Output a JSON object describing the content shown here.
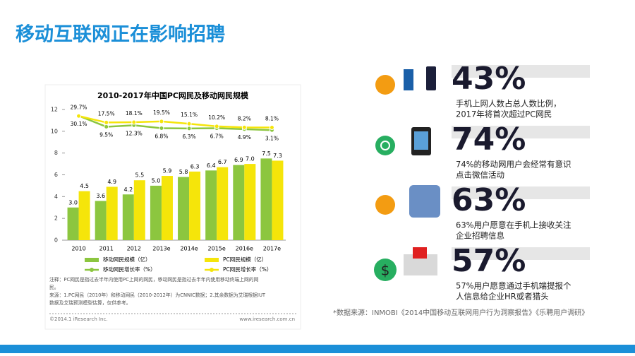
{
  "header": {
    "title": "移动互联网正在影响招聘"
  },
  "chart_data": {
    "type": "bar",
    "title": "2010-2017年中国PC网民及移动网民规模",
    "categories": [
      "2010",
      "2011",
      "2012",
      "2013e",
      "2014e",
      "2015e",
      "2016e",
      "2017e"
    ],
    "series": [
      {
        "name": "移动网民规模（亿）",
        "color": "#8cc63f",
        "values": [
          3.0,
          3.6,
          4.2,
          5.0,
          5.8,
          6.4,
          6.9,
          7.5
        ],
        "value_labels": [
          "3.0",
          "3.6",
          "4.2",
          "5.0",
          "5.8",
          "6.4",
          "6.9",
          "7.5"
        ]
      },
      {
        "name": "PC网民规模（亿）",
        "color": "#f5e50a",
        "values": [
          4.5,
          4.9,
          5.5,
          5.9,
          6.3,
          6.7,
          7.0,
          7.3
        ],
        "value_labels": [
          "4.5",
          "4.9",
          "5.5",
          "5.9",
          "6.3",
          "6.7",
          "7.0",
          "7.3"
        ]
      },
      {
        "name": "移动网民增长率（%）",
        "type": "line",
        "axis": "y2",
        "color": "#8cc63f",
        "values": [
          30.1,
          9.5,
          12.3,
          6.8,
          6.3,
          6.7,
          4.9,
          3.1
        ],
        "value_labels": [
          "30.1%",
          "9.5%",
          "12.3%",
          "6.8%",
          "6.3%",
          "6.7%",
          "4.9%",
          "3.1%"
        ]
      },
      {
        "name": "PC网民增长率（%）",
        "type": "line",
        "axis": "y2",
        "color": "#f5e50a",
        "values": [
          29.7,
          17.5,
          18.1,
          19.5,
          15.1,
          10.2,
          8.2,
          8.1
        ],
        "value_labels": [
          "29.7%",
          "17.5%",
          "18.1%",
          "19.5%",
          "15.1%",
          "10.2%",
          "8.2%",
          "8.1%"
        ]
      }
    ],
    "ylim": [
      0,
      12
    ],
    "yticks": [
      0,
      2,
      4,
      6,
      8,
      10,
      12
    ],
    "y2lim": [
      -204,
      42
    ],
    "notes": [
      "注释：PC网民是指过去半年内使用PC上网的网民，移动网民是指过去半年内使用移动终端上网的网",
      "民。",
      "来源：1.PC网民（2010年）和移动网民（2010-2012年）为CNNIC数据；2.其余数据为艾瑞根据IUT",
      "数据及艾瑞预测模型估算，仅供参考。"
    ],
    "copyright": "©2014.1 iResearch Inc.",
    "website": "www.iresearch.com.cn"
  },
  "stats": [
    {
      "number": "43%",
      "lines": [
        "手机上网人数占总人数比例，",
        "2017年将首次超过PC网民"
      ]
    },
    {
      "number": "74%",
      "lines": [
        "74%的移动网用户会经常有意识",
        "点击微信活动"
      ]
    },
    {
      "number": "63%",
      "lines": [
        "63%用户愿意在手机上接收关注",
        "企业招聘信息"
      ]
    },
    {
      "number": "57%",
      "lines": [
        "57%用户愿意通过手机端提报个",
        "人信息给企业HR或者猎头"
      ]
    }
  ],
  "source": "*数据来源：INMOBI《2014中国移动互联网用户行为洞察报告》《乐聘用户调研》"
}
